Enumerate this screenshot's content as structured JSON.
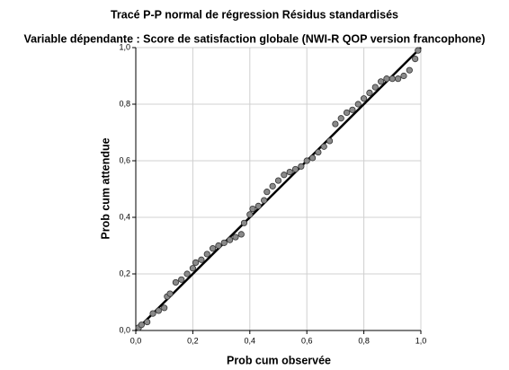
{
  "chart_data": {
    "type": "scatter",
    "title": "Tracé P-P normal de régression Résidus standardisés",
    "subtitle": "Variable dépendante : Score de satisfaction globale (NWI-R QOP version francophone)",
    "x_label": "Prob cum observée",
    "y_label": "Prob cum attendue",
    "x": [
      0.01,
      0.02,
      0.04,
      0.06,
      0.08,
      0.1,
      0.11,
      0.12,
      0.14,
      0.16,
      0.18,
      0.2,
      0.21,
      0.23,
      0.25,
      0.27,
      0.29,
      0.31,
      0.33,
      0.35,
      0.37,
      0.38,
      0.4,
      0.41,
      0.43,
      0.45,
      0.46,
      0.48,
      0.5,
      0.52,
      0.54,
      0.56,
      0.58,
      0.6,
      0.62,
      0.64,
      0.66,
      0.68,
      0.7,
      0.72,
      0.74,
      0.76,
      0.78,
      0.8,
      0.82,
      0.84,
      0.86,
      0.88,
      0.9,
      0.92,
      0.94,
      0.96,
      0.98,
      0.99
    ],
    "values": [
      0.01,
      0.02,
      0.03,
      0.06,
      0.07,
      0.08,
      0.12,
      0.13,
      0.17,
      0.18,
      0.2,
      0.22,
      0.24,
      0.25,
      0.27,
      0.29,
      0.3,
      0.31,
      0.32,
      0.33,
      0.34,
      0.38,
      0.41,
      0.43,
      0.44,
      0.46,
      0.49,
      0.51,
      0.53,
      0.55,
      0.56,
      0.57,
      0.58,
      0.6,
      0.61,
      0.63,
      0.65,
      0.67,
      0.73,
      0.75,
      0.77,
      0.78,
      0.8,
      0.82,
      0.84,
      0.86,
      0.88,
      0.89,
      0.89,
      0.89,
      0.9,
      0.92,
      0.96,
      0.99
    ],
    "color": "#8a8a8a",
    "xlim": [
      0,
      1
    ],
    "ylim": [
      0,
      1
    ],
    "xticks": [
      {
        "value": 0,
        "label": "0,0"
      },
      {
        "value": 0.2,
        "label": "0,2"
      },
      {
        "value": 0.4,
        "label": "0,4"
      },
      {
        "value": 0.6,
        "label": "0,6"
      },
      {
        "value": 0.8,
        "label": "0,8"
      },
      {
        "value": 1,
        "label": "1,0"
      }
    ],
    "yticks": [
      {
        "value": 0,
        "label": "0,0"
      },
      {
        "value": 0.2,
        "label": "0,2"
      },
      {
        "value": 0.4,
        "label": "0,4"
      },
      {
        "value": 0.6,
        "label": "0,6"
      },
      {
        "value": 0.8,
        "label": "0,8"
      },
      {
        "value": 1,
        "label": "1,0"
      }
    ],
    "grid": true
  }
}
